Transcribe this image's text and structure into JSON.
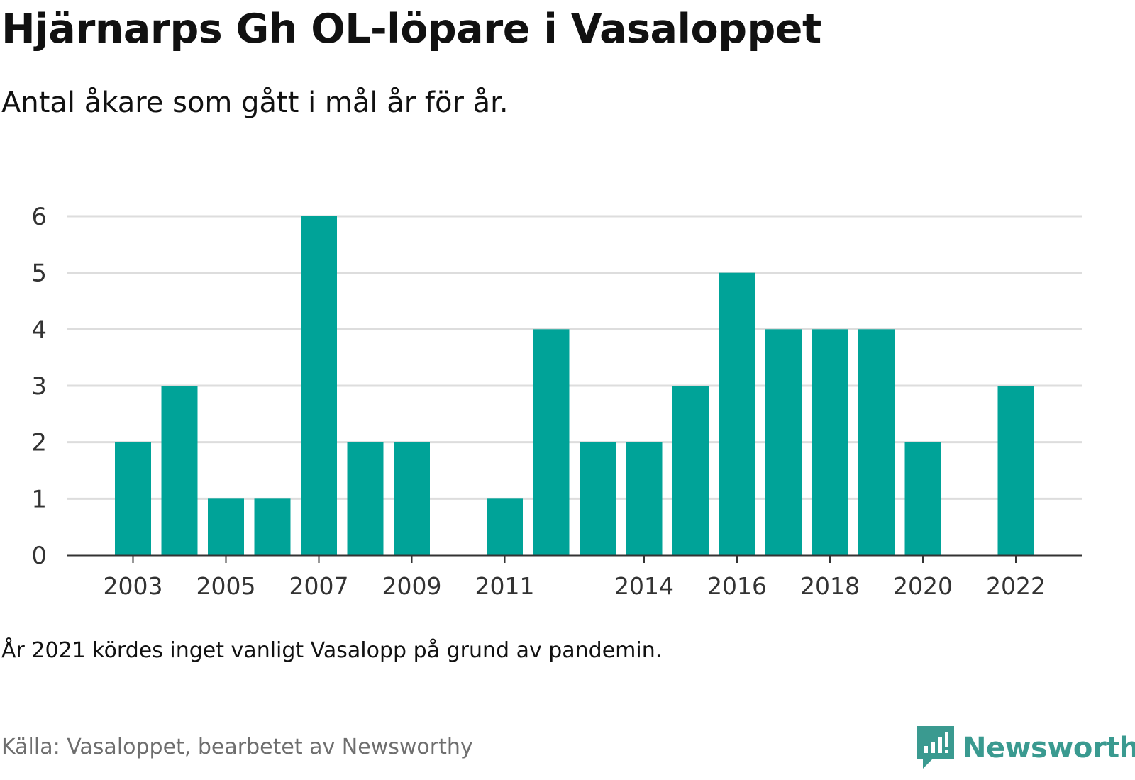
{
  "title": "Hjärnarps Gh OL-löpare i Vasaloppet",
  "subtitle": "Antal åkare som gått i mål år för år.",
  "note": "År 2021 kördes inget vanligt Vasalopp på grund av pandemin.",
  "source": "Källa: Vasaloppet, bearbetet av Newsworthy",
  "logo": {
    "text": "Newsworthy",
    "icon": "newsworthy-logo-icon"
  },
  "colors": {
    "bar": "#00a398",
    "grid": "#dddddd",
    "axis": "#333333",
    "brand": "#3a9a90"
  },
  "chart_data": {
    "type": "bar",
    "x": [
      2003,
      2004,
      2005,
      2006,
      2007,
      2008,
      2009,
      2010,
      2011,
      2012,
      2013,
      2014,
      2015,
      2016,
      2017,
      2018,
      2019,
      2020,
      2021,
      2022
    ],
    "values": [
      2,
      3,
      1,
      1,
      6,
      2,
      2,
      0,
      1,
      4,
      2,
      2,
      3,
      5,
      4,
      4,
      4,
      2,
      0,
      3
    ],
    "x_tick_labels": [
      "2003",
      "2005",
      "2007",
      "2009",
      "2011",
      "2014",
      "2016",
      "2018",
      "2020",
      "2022"
    ],
    "y_ticks": [
      0,
      1,
      2,
      3,
      4,
      5,
      6
    ],
    "ylim": [
      0,
      6
    ],
    "grid": true,
    "legend": "none",
    "xlabel": "",
    "ylabel": ""
  }
}
